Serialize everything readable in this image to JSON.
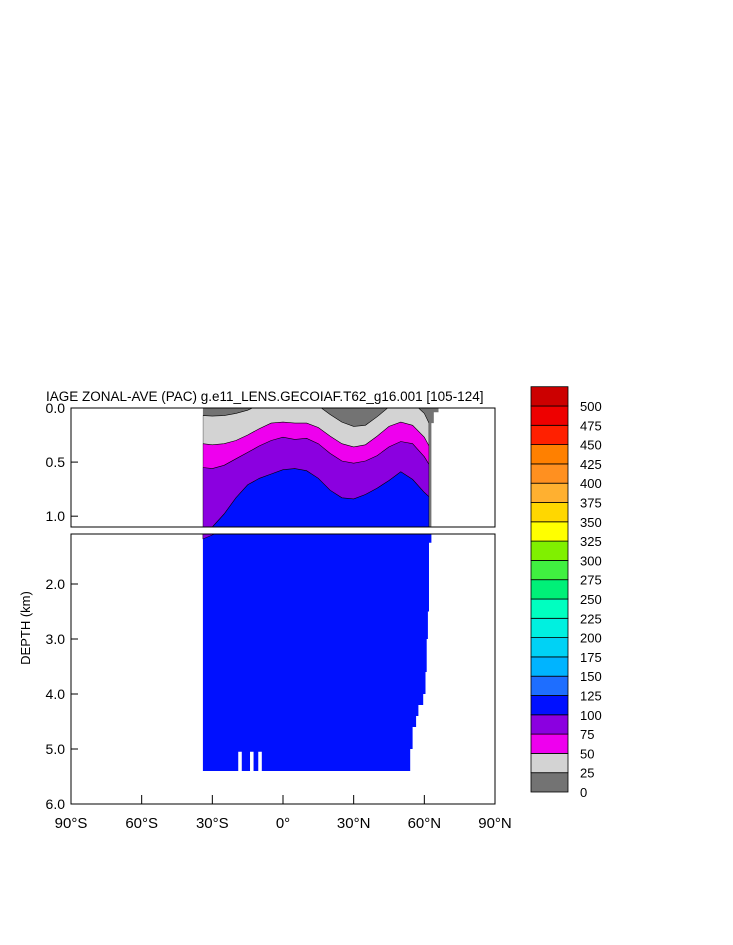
{
  "chart_data": {
    "type": "heatmap",
    "title": "IAGE ZONAL-AVE (PAC) g.e11_LENS.GECOIAF.T62_g16.001 [105-124]",
    "ylabel": "DEPTH (km)",
    "xlim": [
      -90,
      90
    ],
    "upper_panel_ylim": [
      0,
      1.1
    ],
    "lower_panel_ylim": [
      1.1,
      6.0
    ],
    "upper_yticks": [
      0.0,
      0.5,
      1.0
    ],
    "upper_ytick_labels": [
      "0.0",
      "0.5",
      "1.0"
    ],
    "lower_yticks": [
      2.0,
      3.0,
      4.0,
      5.0,
      6.0
    ],
    "lower_ytick_labels": [
      "2.0",
      "3.0",
      "4.0",
      "5.0",
      "6.0"
    ],
    "xticks": [
      -90,
      -60,
      -30,
      0,
      30,
      60,
      90
    ],
    "xtick_labels": [
      "90°S",
      "60°S",
      "30°S",
      "0°",
      "30°N",
      "60°N",
      "90°N"
    ],
    "colorbar": {
      "levels": [
        "0",
        "25",
        "50",
        "75",
        "100",
        "125",
        "150",
        "175",
        "200",
        "225",
        "250",
        "275",
        "300",
        "325",
        "350",
        "375",
        "400",
        "425",
        "450",
        "475",
        "500"
      ],
      "colors": [
        "#737373",
        "#d3d3d3",
        "#ee00ee",
        "#8b00e0",
        "#0010ff",
        "#1e6eff",
        "#00b4ff",
        "#00d2f5",
        "#00f0e0",
        "#00ffc0",
        "#00f078",
        "#40f040",
        "#80f000",
        "#ffff00",
        "#ffd700",
        "#ffb030",
        "#ff9020",
        "#ff8000",
        "#ff2000",
        "#ee0000",
        "#cc0000"
      ]
    },
    "contours": {
      "lat": [
        -34,
        -30,
        -25,
        -20,
        -15,
        -10,
        -5,
        0,
        5,
        10,
        15,
        20,
        25,
        30,
        35,
        40,
        45,
        50,
        55,
        60,
        62
      ],
      "d25": [
        0.07,
        0.075,
        0.07,
        0.05,
        0.02,
        -0.03,
        -0.08,
        -0.1,
        -0.1,
        -0.08,
        -0.02,
        0.06,
        0.13,
        0.17,
        0.16,
        0.08,
        -0.01,
        -0.06,
        -0.05,
        0.05,
        0.14
      ],
      "d50": [
        0.33,
        0.34,
        0.33,
        0.3,
        0.25,
        0.19,
        0.14,
        0.13,
        0.14,
        0.14,
        0.18,
        0.26,
        0.33,
        0.36,
        0.34,
        0.26,
        0.17,
        0.13,
        0.16,
        0.27,
        0.35
      ],
      "d75": [
        0.55,
        0.56,
        0.53,
        0.47,
        0.41,
        0.35,
        0.3,
        0.27,
        0.29,
        0.28,
        0.33,
        0.42,
        0.49,
        0.51,
        0.49,
        0.44,
        0.36,
        0.31,
        0.33,
        0.45,
        0.52
      ],
      "d100": [
        1.14,
        1.1,
        0.98,
        0.83,
        0.71,
        0.65,
        0.61,
        0.57,
        0.56,
        0.58,
        0.65,
        0.76,
        0.83,
        0.84,
        0.8,
        0.74,
        0.67,
        0.59,
        0.66,
        0.78,
        0.82
      ]
    },
    "ocean_extent": {
      "south_lat": -34,
      "north_boundary": [
        [
          0.0,
          66
        ],
        [
          0.04,
          64
        ],
        [
          0.14,
          63
        ],
        [
          1.25,
          62
        ],
        [
          2.5,
          61.5
        ],
        [
          3.0,
          61
        ],
        [
          3.6,
          60.5
        ],
        [
          4.0,
          59.5
        ],
        [
          4.2,
          57.5
        ],
        [
          4.4,
          56.5
        ],
        [
          4.6,
          55
        ],
        [
          5.0,
          54
        ],
        [
          5.4,
          53
        ]
      ],
      "bottom_depth": 5.4,
      "gaps": [
        [
          -19,
          -17.5
        ],
        [
          -14,
          -12.5
        ],
        [
          -10.5,
          -9
        ]
      ]
    }
  }
}
